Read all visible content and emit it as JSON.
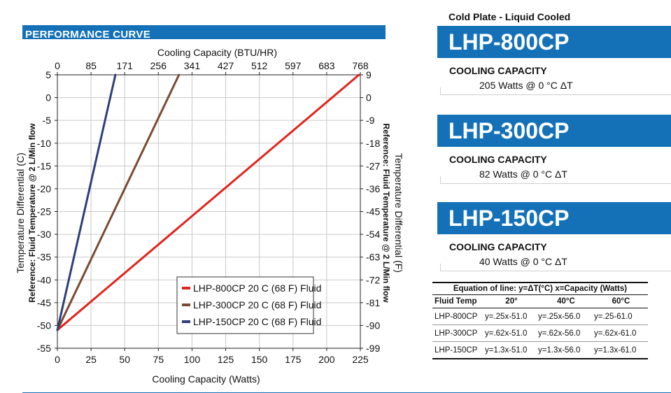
{
  "section_title": "PERFORMANCE CURVE",
  "chart_data": {
    "type": "line",
    "x_bottom_label": "Cooling Capacity (Watts)",
    "x_bottom_ticks": [
      0,
      25,
      50,
      75,
      100,
      125,
      150,
      175,
      200,
      225
    ],
    "x_range": [
      0,
      225
    ],
    "x_top_label": "Cooling Capacity (BTU/HR)",
    "x_top_ticks": [
      "0",
      "85",
      "171",
      "256",
      "341",
      "427",
      "512",
      "597",
      "683",
      "768"
    ],
    "y_left_label": "Temperature Differential (C)",
    "y_left_sublabel": "Reference: Fluid Temperature @ 2 L/Min flow",
    "y_left_ticks": [
      5,
      0,
      -5,
      -10,
      -15,
      -20,
      -25,
      -30,
      -35,
      -40,
      -45,
      -50,
      -55
    ],
    "y_range": [
      -55,
      5
    ],
    "y_right_label": "Temperature Differential (F)",
    "y_right_sublabel": "Reference: Fluid Temperature @ 2 L/Min flow",
    "y_right_ticks": [
      "9",
      "0",
      "-9",
      "-18",
      "-27",
      "-36",
      "-45",
      "-54",
      "-63",
      "-72",
      "-81",
      "-90",
      "-99"
    ],
    "grid": true,
    "legend_position": "bottom-right",
    "series": [
      {
        "name": "LHP-800CP 20 C (68 F) Fluid",
        "color": "#e0241b",
        "x": [
          0,
          224
        ],
        "y": [
          -51,
          5
        ]
      },
      {
        "name": "LHP-300CP 20 C (68 F) Fluid",
        "color": "#7b4a32",
        "x": [
          0,
          90.3
        ],
        "y": [
          -51,
          5
        ]
      },
      {
        "name": "LHP-150CP 20 C (68 F) Fluid",
        "color": "#2e3f78",
        "x": [
          0,
          43.1
        ],
        "y": [
          -51,
          5
        ]
      }
    ]
  },
  "product_type": "Cold Plate - Liquid Cooled",
  "models": [
    {
      "name": "LHP-800CP",
      "capacity_label": "COOLING CAPACITY",
      "capacity_value": "205 Watts  @  0 °C ΔT"
    },
    {
      "name": "LHP-300CP",
      "capacity_label": "COOLING CAPACITY",
      "capacity_value": "82 Watts  @  0 °C ΔT"
    },
    {
      "name": "LHP-150CP",
      "capacity_label": "COOLING CAPACITY",
      "capacity_value": "40 Watts  @  0 °C ΔT"
    }
  ],
  "equation_table": {
    "title": "Equation of line: y=ΔT(°C)  x=Capacity (Watts)",
    "headers": [
      "Fluid Temp",
      "20°",
      "40°C",
      "60°C"
    ],
    "rows": [
      [
        "LHP-800CP",
        "y=.25x-51.0",
        "y=.25x-56.0",
        "y=.25-61.0"
      ],
      [
        "LHP-300CP",
        "y=.62x-51.0",
        "y=.62x-56.0",
        "y=.62x-61.0"
      ],
      [
        "LHP-150CP",
        "y=1.3x-51.0",
        "y=1.3x-56.0",
        "y=1.3x-61.0"
      ]
    ]
  },
  "colors": {
    "brand_blue": "#1471b8"
  }
}
